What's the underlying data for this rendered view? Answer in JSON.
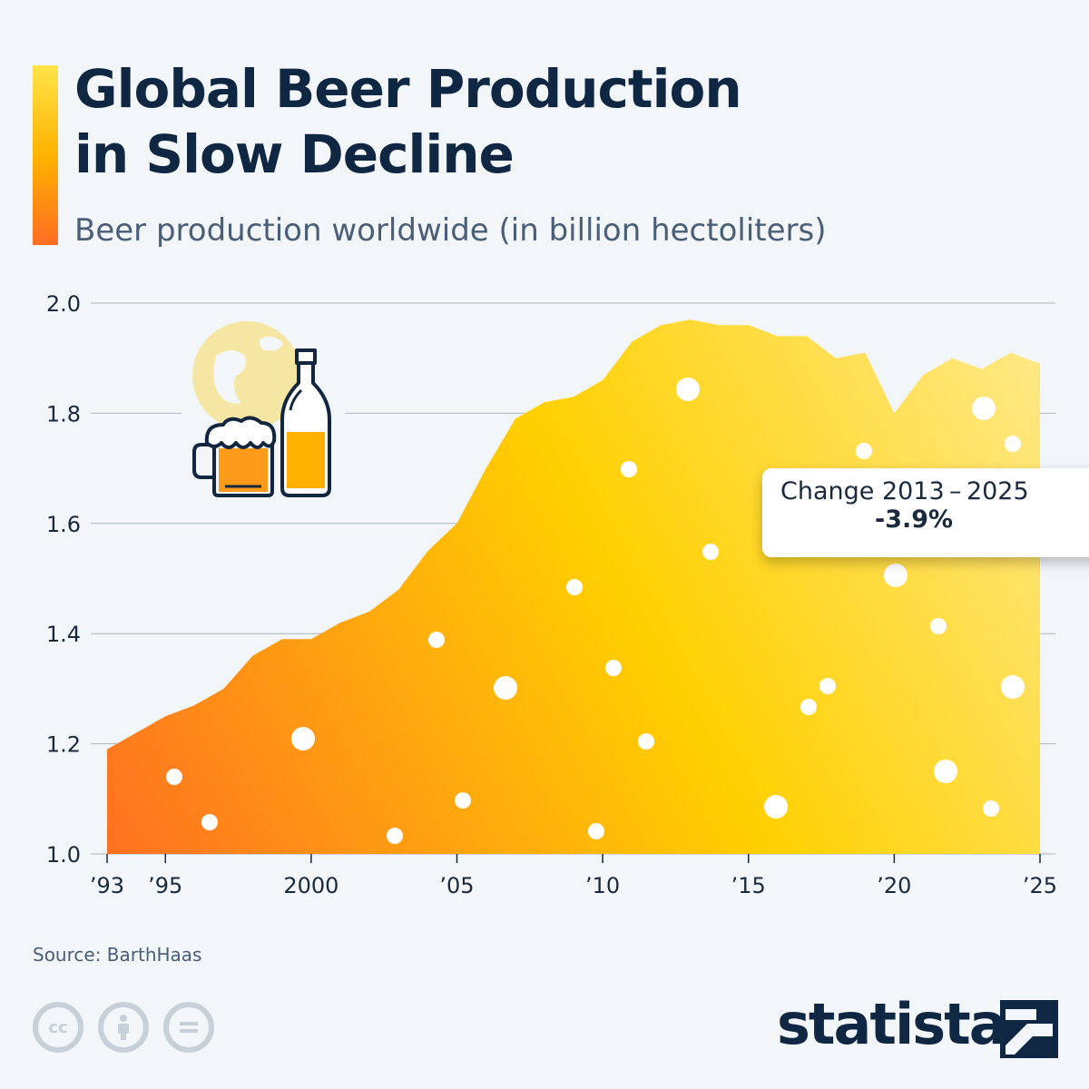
{
  "header": {
    "title_line1": "Global Beer Production",
    "title_line2": "in Slow Decline",
    "subtitle": "Beer production worldwide (in billion hectoliters)"
  },
  "callout": {
    "label": "Change 2013 – 2025",
    "value": "-3.9%"
  },
  "footer": {
    "source": "Source: BarthHaas",
    "brand": "statista",
    "license_icons": [
      "cc-icon",
      "attribution-icon",
      "no-derivatives-icon"
    ]
  },
  "colors": {
    "gradient_bottom_left": "#ff6d22",
    "gradient_mid": "#ffd000",
    "gradient_top_right": "#ffe98a",
    "title": "#0f2742",
    "subtitle": "#4a5e78",
    "accent": "#ffb300"
  },
  "icons": [
    "globe-icon",
    "beer-mug-icon",
    "beer-bottle-icon"
  ],
  "chart_data": {
    "type": "area",
    "title": "Global Beer Production in Slow Decline",
    "subtitle": "Beer production worldwide (in billion hectoliters)",
    "x": [
      1993,
      1994,
      1995,
      1996,
      1997,
      1998,
      1999,
      2000,
      2001,
      2002,
      2003,
      2004,
      2005,
      2006,
      2007,
      2008,
      2009,
      2010,
      2011,
      2012,
      2013,
      2014,
      2015,
      2016,
      2017,
      2018,
      2019,
      2020,
      2021,
      2022,
      2023,
      2024,
      2025
    ],
    "series": [
      {
        "values": [
          1.19,
          1.22,
          1.25,
          1.27,
          1.3,
          1.36,
          1.39,
          1.39,
          1.42,
          1.44,
          1.48,
          1.55,
          1.6,
          1.7,
          1.79,
          1.82,
          1.83,
          1.86,
          1.93,
          1.96,
          1.97,
          1.96,
          1.96,
          1.94,
          1.94,
          1.9,
          1.91,
          1.8,
          1.87,
          1.9,
          1.88,
          1.91,
          1.89
        ]
      }
    ],
    "xticks": [
      1993,
      1995,
      2000,
      2005,
      2010,
      2015,
      2020,
      2025
    ],
    "xtick_labels": [
      "’93",
      "’95",
      "2000",
      "’05",
      "’10",
      "’15",
      "’20",
      "’25"
    ],
    "yticks": [
      1.0,
      1.2,
      1.4,
      1.6,
      1.8,
      2.0
    ],
    "ytick_labels": [
      "1.0",
      "1.2",
      "1.4",
      "1.6",
      "1.8",
      "2.0"
    ],
    "ylim": [
      1.0,
      2.0
    ],
    "xlim": [
      1993,
      2025
    ],
    "grid": true,
    "legend": "none"
  }
}
